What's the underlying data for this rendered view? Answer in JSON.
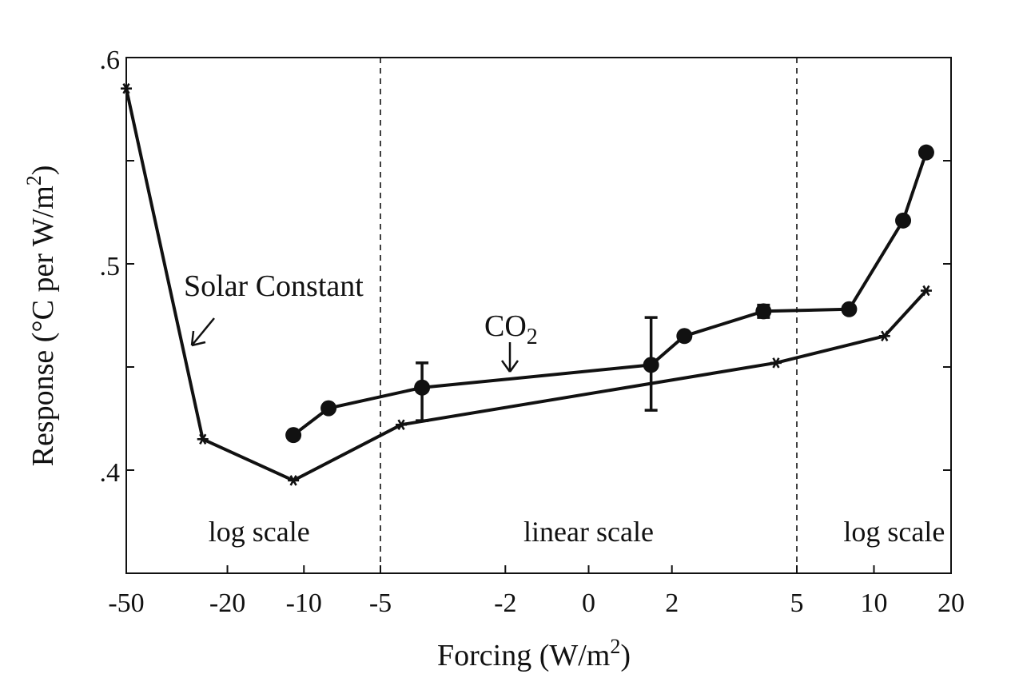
{
  "chart_data": {
    "type": "line",
    "title": "",
    "xlabel": "Forcing (W/m2)",
    "xlabel_parts": {
      "base": "Forcing (W/m",
      "sup": "2",
      "close": ")"
    },
    "ylabel": "Response (°C per W/m2)",
    "ylabel_parts": {
      "base": "Response (°C per W/m",
      "sup": "2",
      "close": ")"
    },
    "x_scale": "piecewise: log for x <= -5, linear for -5..5, log for x >= 5",
    "x_ticks": [
      -50,
      -20,
      -10,
      -5,
      -2,
      0,
      2,
      5,
      10,
      20
    ],
    "x_tick_labels": [
      "-50",
      "-20",
      "-10",
      "-5",
      "-2",
      "0",
      "2",
      "5",
      "10",
      "20"
    ],
    "xlim": [
      -50,
      20
    ],
    "ylim": [
      0.35,
      0.6
    ],
    "y_tick_labels": [
      {
        "value": 0.4,
        "label": ".4"
      },
      {
        "value": 0.5,
        "label": ".5"
      },
      {
        "value": 0.6,
        "label": ".6"
      }
    ],
    "y_minor_ticks": [
      0.45,
      0.55
    ],
    "region_dividers": [
      -5,
      5
    ],
    "regions": [
      {
        "label": "log scale",
        "x": -15
      },
      {
        "label": "linear scale",
        "x": 0
      },
      {
        "label": "log scale",
        "x": 12
      }
    ],
    "series": [
      {
        "name": "Solar Constant",
        "marker": "asterisk",
        "x": [
          -50,
          -25,
          -11,
          -4.5,
          4.5,
          11,
          16
        ],
        "y": [
          0.585,
          0.415,
          0.395,
          0.422,
          0.452,
          0.465,
          0.487
        ]
      },
      {
        "name": "CO",
        "name_sub": "2",
        "marker": "circle",
        "x": [
          -11,
          -8,
          -4,
          1.5,
          2.3,
          4.2,
          8,
          13,
          16
        ],
        "y": [
          0.417,
          0.43,
          0.44,
          0.451,
          0.465,
          0.477,
          0.478,
          0.521,
          0.554
        ],
        "error_bars": [
          {
            "x": -4,
            "low": 0.424,
            "high": 0.452
          },
          {
            "x": 1.5,
            "low": 0.429,
            "high": 0.474
          },
          {
            "x": 4.2,
            "low": 0.474,
            "high": 0.48
          }
        ]
      }
    ],
    "annotations": [
      {
        "text": "Solar Constant",
        "series": 0
      },
      {
        "text": "CO",
        "sub": "2",
        "series": 1
      }
    ]
  }
}
